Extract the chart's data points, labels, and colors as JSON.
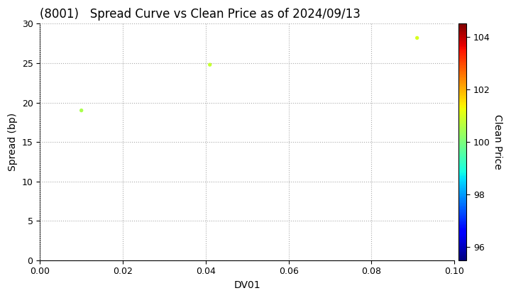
{
  "title": "(8001)   Spread Curve vs Clean Price as of 2024/09/13",
  "xlabel": "DV01",
  "ylabel": "Spread (bp)",
  "colorbar_label": "Clean Price",
  "points": [
    {
      "dv01": 0.01,
      "spread": 19.0,
      "clean_price": 100.5
    },
    {
      "dv01": 0.041,
      "spread": 24.8,
      "clean_price": 100.8
    },
    {
      "dv01": 0.091,
      "spread": 28.2,
      "clean_price": 101.0
    }
  ],
  "xlim": [
    0.0,
    0.1
  ],
  "ylim": [
    0,
    30
  ],
  "xticks": [
    0.0,
    0.02,
    0.04,
    0.06,
    0.08,
    0.1
  ],
  "yticks": [
    0,
    5,
    10,
    15,
    20,
    25,
    30
  ],
  "color_min": 95.5,
  "color_max": 104.5,
  "cbar_ticks": [
    96,
    98,
    100,
    102,
    104
  ],
  "marker_size": 15,
  "background_color": "#ffffff",
  "grid_color": "#aaaaaa",
  "title_fontsize": 12,
  "label_fontsize": 10,
  "tick_fontsize": 9,
  "cbar_fontsize": 9,
  "fig_width": 7.2,
  "fig_height": 4.2,
  "dpi": 100
}
